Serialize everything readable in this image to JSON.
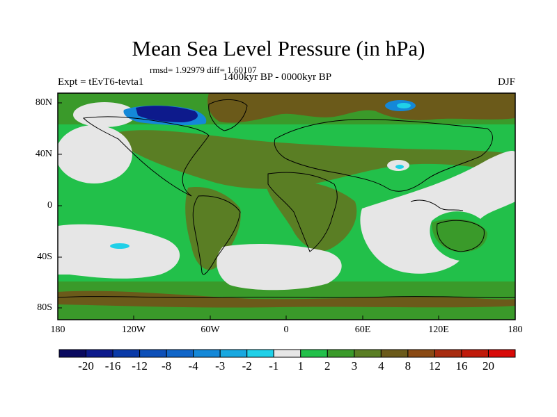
{
  "title": "Mean Sea Level Pressure (in hPa)",
  "stats": "rmsd= 1.92979  diff= 1.60107",
  "experiment": "Expt = tEvT6-tevta1",
  "period": "1400kyr BP - 0000kyr BP",
  "season": "DJF",
  "lat_ticks": [
    "80N",
    "40N",
    "0",
    "40S",
    "80S"
  ],
  "lon_ticks": [
    "180",
    "120W",
    "60W",
    "0",
    "60E",
    "120E",
    "180"
  ],
  "colorbar": {
    "labels": [
      "-20",
      "-16",
      "-12",
      "-8",
      "-4",
      "-3",
      "-2",
      "-1",
      "1",
      "2",
      "3",
      "4",
      "8",
      "12",
      "16",
      "20"
    ],
    "colors": [
      "#0a0a60",
      "#0d1a8c",
      "#0a3aa8",
      "#0d4fb8",
      "#1065c8",
      "#1488d8",
      "#18a8e0",
      "#20d0e8",
      "#e6e6e6",
      "#22c04a",
      "#3a9a2a",
      "#5a7e24",
      "#6b5a1a",
      "#8a4a14",
      "#a82c10",
      "#c01a0a",
      "#d80a08"
    ]
  },
  "map_colors": {
    "green_light": "#22c04a",
    "green_dark": "#3a9a2a",
    "olive": "#5a7e24",
    "brown": "#6b5a1a",
    "white": "#e6e6e6",
    "blue_dark": "#0d1a8c",
    "blue_mid": "#1488d8",
    "cyan": "#20d0e8"
  }
}
